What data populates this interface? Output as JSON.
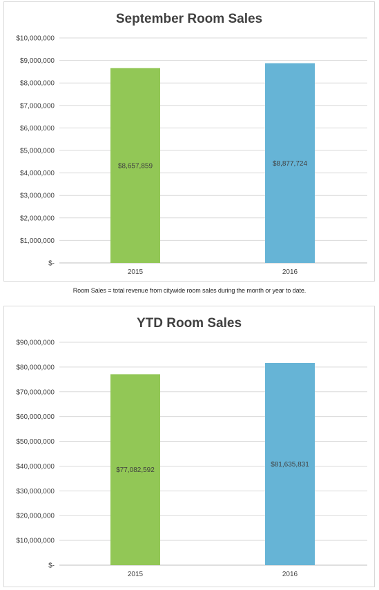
{
  "note": "Room Sales = total revenue from citywide room sales during the month or year to date.",
  "chart_data": [
    {
      "type": "bar",
      "title": "September Room Sales",
      "categories": [
        "2015",
        "2016"
      ],
      "values": [
        8657859,
        8877724
      ],
      "data_labels": [
        "$8,657,859",
        "$8,877,724"
      ],
      "colors": [
        "#92c756",
        "#66b4d6"
      ],
      "ylim": [
        0,
        10000000
      ],
      "yticks": [
        0,
        1000000,
        2000000,
        3000000,
        4000000,
        5000000,
        6000000,
        7000000,
        8000000,
        9000000,
        10000000
      ],
      "ytick_labels": [
        "$-",
        "$1,000,000",
        "$2,000,000",
        "$3,000,000",
        "$4,000,000",
        "$5,000,000",
        "$6,000,000",
        "$7,000,000",
        "$8,000,000",
        "$9,000,000",
        "$10,000,000"
      ],
      "grid": true,
      "legend": "none"
    },
    {
      "type": "bar",
      "title": "YTD Room Sales",
      "categories": [
        "2015",
        "2016"
      ],
      "values": [
        77082592,
        81635831
      ],
      "data_labels": [
        "$77,082,592",
        "$81,635,831"
      ],
      "colors": [
        "#92c756",
        "#66b4d6"
      ],
      "ylim": [
        0,
        90000000
      ],
      "yticks": [
        0,
        10000000,
        20000000,
        30000000,
        40000000,
        50000000,
        60000000,
        70000000,
        80000000,
        90000000
      ],
      "ytick_labels": [
        "$-",
        "$10,000,000",
        "$20,000,000",
        "$30,000,000",
        "$40,000,000",
        "$50,000,000",
        "$60,000,000",
        "$70,000,000",
        "$80,000,000",
        "$90,000,000"
      ],
      "grid": true,
      "legend": "none"
    }
  ]
}
